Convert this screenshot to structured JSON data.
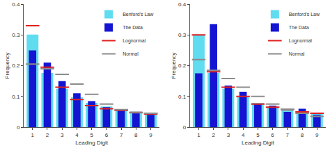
{
  "chart_data": [
    {
      "type": "bar",
      "x_label": "Leading Digit",
      "y_label": "Frequency",
      "categories": [
        "1",
        "2",
        "3",
        "4",
        "5",
        "6",
        "7",
        "8",
        "9"
      ],
      "series": [
        {
          "name": "Benford's Law",
          "type": "bar",
          "color": "#5fdcf0",
          "values": [
            0.301,
            0.176,
            0.125,
            0.097,
            0.079,
            0.067,
            0.058,
            0.051,
            0.046
          ]
        },
        {
          "name": "The Data",
          "type": "bar",
          "color": "#1414d2",
          "values": [
            0.25,
            0.21,
            0.15,
            0.11,
            0.085,
            0.065,
            0.055,
            0.045,
            0.04
          ]
        },
        {
          "name": "Lognormal",
          "type": "scatter",
          "marker": "line",
          "color": "#e02020",
          "values": [
            0.33,
            0.195,
            0.13,
            0.09,
            0.07,
            0.06,
            0.055,
            0.048,
            0.043
          ]
        },
        {
          "name": "Normal",
          "type": "scatter",
          "marker": "line",
          "color": "#8c8c8c",
          "values": [
            0.205,
            0.19,
            0.172,
            0.14,
            0.107,
            0.075,
            0.057,
            0.047,
            0.045
          ]
        }
      ],
      "ylim": [
        0,
        0.4
      ],
      "yticks": [
        0,
        0.1,
        0.2,
        0.3,
        0.4
      ],
      "grid": false,
      "legend": "upper right"
    },
    {
      "type": "bar",
      "x_label": "Leading Digit",
      "y_label": "Frequency",
      "categories": [
        "1",
        "2",
        "3",
        "4",
        "5",
        "6",
        "7",
        "8",
        "9"
      ],
      "series": [
        {
          "name": "Benford's Law",
          "type": "bar",
          "color": "#5fdcf0",
          "values": [
            0.301,
            0.176,
            0.125,
            0.097,
            0.079,
            0.067,
            0.058,
            0.051,
            0.046
          ]
        },
        {
          "name": "The Data",
          "type": "bar",
          "color": "#1414d2",
          "values": [
            0.175,
            0.335,
            0.135,
            0.115,
            0.075,
            0.07,
            0.05,
            0.06,
            0.04
          ]
        },
        {
          "name": "Lognormal",
          "type": "scatter",
          "marker": "line",
          "color": "#e02020",
          "values": [
            0.3,
            0.18,
            0.13,
            0.1,
            0.075,
            0.065,
            0.057,
            0.05,
            0.045
          ]
        },
        {
          "name": "Normal",
          "type": "scatter",
          "marker": "line",
          "color": "#8c8c8c",
          "values": [
            0.22,
            0.185,
            0.158,
            0.13,
            0.1,
            0.075,
            0.058,
            0.045,
            0.035
          ]
        }
      ],
      "ylim": [
        0,
        0.4
      ],
      "yticks": [
        0,
        0.1,
        0.2,
        0.3,
        0.4
      ],
      "grid": false,
      "legend": "upper right"
    }
  ]
}
